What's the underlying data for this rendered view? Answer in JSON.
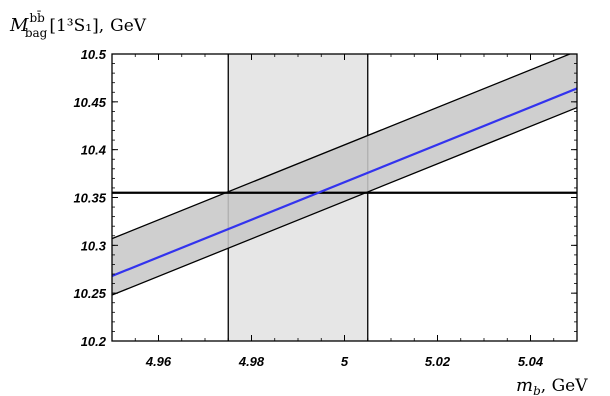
{
  "chart_data": {
    "type": "line",
    "title": "",
    "ylabel": "M_bag^{bb̄}[1³S₁], GeV",
    "ylabel_parts": {
      "symbol": "M",
      "superscript": "bb̄",
      "subscript": "bag",
      "state": "[1³S₁],",
      "unit": "GeV"
    },
    "xlabel": "m_b, GeV",
    "xlabel_parts": {
      "symbol": "m",
      "subscript": "b",
      "unit": ", GeV"
    },
    "xlim": [
      4.95,
      5.05
    ],
    "ylim": [
      10.2,
      10.5
    ],
    "x_ticks": [
      4.96,
      4.98,
      5.0,
      5.02,
      5.04
    ],
    "x_tick_labels": [
      "4.96",
      "4.98",
      "5",
      "5.02",
      "5.04"
    ],
    "y_ticks": [
      10.2,
      10.25,
      10.3,
      10.35,
      10.4,
      10.45,
      10.5
    ],
    "y_tick_labels": [
      "10.2",
      "10.25",
      "10.3",
      "10.35",
      "10.4",
      "10.45",
      "10.5"
    ],
    "grid": false,
    "legend": "none",
    "series": [
      {
        "role": "central",
        "color": "#3333ee",
        "x": [
          4.95,
          5.05
        ],
        "y": [
          10.268,
          10.464
        ]
      },
      {
        "role": "upper-bound",
        "color": "#000000",
        "x": [
          4.95,
          5.05
        ],
        "y": [
          10.307,
          10.503
        ]
      },
      {
        "role": "lower-bound",
        "color": "#000000",
        "x": [
          4.95,
          5.05
        ],
        "y": [
          10.248,
          10.444
        ]
      }
    ],
    "band": {
      "fill": "#c8c8c8",
      "x": [
        4.95,
        5.05
      ],
      "y_upper": [
        10.307,
        10.503
      ],
      "y_lower": [
        10.248,
        10.444
      ]
    },
    "vertical_band": {
      "x_min": 4.975,
      "x_max": 5.005,
      "fill": "#e6e6e6",
      "edge_color": "#000000"
    },
    "reference_line": {
      "y": 10.355,
      "color": "#000000"
    }
  }
}
